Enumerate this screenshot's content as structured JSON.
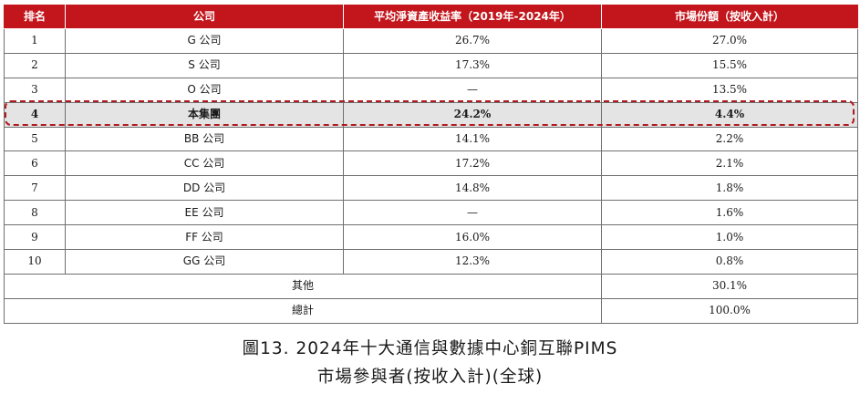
{
  "table": {
    "headers": [
      "排名",
      "公司",
      "平均淨資產收益率（2019年-2024年）",
      "市場份額（按收入計）"
    ],
    "rows": [
      [
        "1",
        "G 公司",
        "26.7%",
        "27.0%"
      ],
      [
        "2",
        "S 公司",
        "17.3%",
        "15.5%"
      ],
      [
        "3",
        "O 公司",
        "—",
        "13.5%"
      ],
      [
        "4",
        "本集團",
        "24.2%",
        "4.4%"
      ],
      [
        "5",
        "BB 公司",
        "14.1%",
        "2.2%"
      ],
      [
        "6",
        "CC 公司",
        "17.2%",
        "2.1%"
      ],
      [
        "7",
        "DD 公司",
        "14.8%",
        "1.8%"
      ],
      [
        "8",
        "EE 公司",
        "—",
        "1.6%"
      ],
      [
        "9",
        "FF 公司",
        "16.0%",
        "1.0%"
      ],
      [
        "10",
        "GG 公司",
        "12.3%",
        "0.8%"
      ]
    ],
    "others": {
      "label": "其他",
      "share": "30.1%"
    },
    "total": {
      "label": "總計",
      "share": "100.0%"
    },
    "highlight_row_rank": "4"
  },
  "caption": {
    "line1": "圖13. 2024年十大通信與數據中心銅互聯PIMS",
    "line2": "市場參與者(按收入計)(全球)"
  },
  "colors": {
    "header_bg": "#c3161c",
    "highlight_bg": "#e4e4e4",
    "highlight_border": "#b01a1e"
  }
}
